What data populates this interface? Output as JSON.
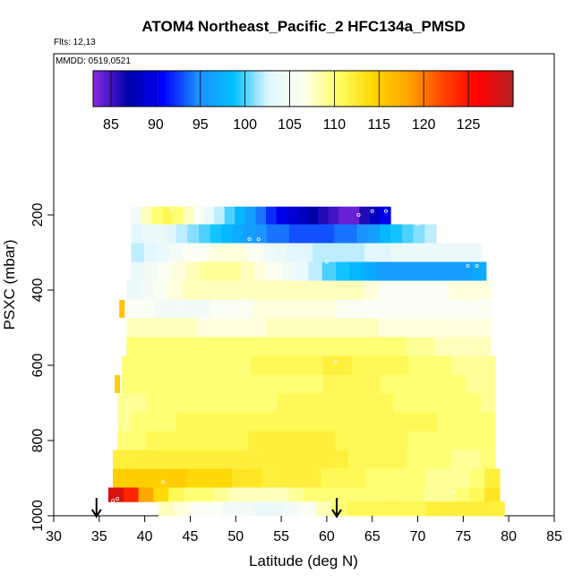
{
  "chart_data": {
    "type": "heatmap",
    "title": "ATOM4 Northeast_Pacific_2 HFC134a_PMSD",
    "flights_label": "Flts: 12,13",
    "dates_label": "MMDD: 0519,0521",
    "xlabel": "Latitude (deg N)",
    "ylabel": "PSXC (mbar)",
    "xlim": [
      30,
      85
    ],
    "ylim": [
      1000,
      0
    ],
    "x_ticks": [
      "30",
      "35",
      "40",
      "45",
      "50",
      "55",
      "60",
      "65",
      "70",
      "75",
      "80",
      "85"
    ],
    "y_ticks": [
      "200",
      "400",
      "600",
      "800",
      "1000"
    ],
    "colorbar": {
      "ticks": [
        "85",
        "90",
        "95",
        "100",
        "105",
        "110",
        "115",
        "120",
        "125"
      ],
      "range": [
        83,
        130
      ],
      "colors": [
        "#8a2be2",
        "#0000a8",
        "#0000ff",
        "#1e90ff",
        "#00bfff",
        "#dff5ff",
        "#fffff0",
        "#ffff66",
        "#ffd700",
        "#ffa500",
        "#ff4500",
        "#ff0000",
        "#b22222"
      ]
    },
    "flight_arrow_latitudes": [
      34.7,
      61.1
    ],
    "rows": [
      {
        "p": 200,
        "lat_start": 38.5,
        "lat_end": 67,
        "values": [
          105,
          108,
          110,
          111,
          110,
          108,
          106,
          104,
          102,
          100,
          98,
          96,
          94,
          92,
          90,
          89,
          88,
          87,
          86,
          85,
          84,
          84,
          86,
          88,
          90
        ]
      },
      {
        "p": 250,
        "lat_start": 38.5,
        "lat_end": 72,
        "values": [
          103,
          104,
          104,
          103,
          102,
          101,
          100,
          99,
          98,
          97,
          96,
          95,
          94,
          94,
          93,
          93,
          93,
          93,
          94,
          94,
          95,
          96,
          98,
          99,
          100,
          101,
          102
        ]
      },
      {
        "p": 300,
        "lat_start": 38.5,
        "lat_end": 77,
        "values": [
          102,
          103,
          104,
          105,
          106,
          106,
          107,
          107,
          107,
          106,
          105,
          104,
          103,
          103,
          102,
          102,
          102,
          102,
          103,
          103,
          104,
          104,
          104,
          104,
          104,
          104,
          104
        ]
      },
      {
        "p": 350,
        "lat_start": 38.5,
        "lat_end": 77.5,
        "values": [
          104,
          105,
          106,
          107,
          108,
          109,
          109,
          109,
          108,
          107,
          106,
          105,
          104,
          102,
          100,
          99,
          98,
          97,
          96,
          96,
          96,
          96,
          96,
          96,
          96,
          97
        ]
      },
      {
        "p": 400,
        "lat_start": 38,
        "lat_end": 78,
        "values": [
          104,
          105,
          106,
          107,
          108,
          108,
          108,
          108,
          108,
          108,
          108,
          108,
          108,
          108,
          108,
          108,
          108,
          107,
          106,
          106,
          106,
          106,
          106,
          107,
          107,
          107
        ]
      },
      {
        "p": 450,
        "lat_start": 38,
        "lat_end": 78,
        "values": [
          106,
          106,
          105,
          105,
          105,
          105,
          106,
          106,
          106,
          107,
          107,
          107,
          107,
          107,
          107,
          106,
          106,
          106,
          106,
          106,
          106,
          106,
          106,
          106,
          106,
          106
        ]
      },
      {
        "p": 500,
        "lat_start": 38,
        "lat_end": 78,
        "values": [
          108,
          108,
          108,
          108,
          108,
          107,
          107,
          107,
          107,
          107,
          108,
          108,
          108,
          108,
          108,
          108,
          108,
          108,
          107,
          107,
          107,
          107,
          107,
          107,
          107,
          107
        ]
      },
      {
        "p": 550,
        "lat_start": 38,
        "lat_end": 78,
        "values": [
          110,
          110,
          110,
          110,
          110,
          110,
          110,
          110,
          110,
          110,
          110,
          110,
          110,
          110,
          110,
          110,
          110,
          110,
          110,
          110,
          109,
          109,
          108,
          108,
          108,
          108
        ]
      },
      {
        "p": 600,
        "lat_start": 37.5,
        "lat_end": 78.5,
        "values": [
          110,
          110,
          110,
          110,
          110,
          110,
          110,
          110,
          110,
          111,
          111,
          111,
          111,
          111,
          112,
          112,
          111,
          111,
          111,
          111,
          110,
          110,
          110,
          109,
          109,
          109
        ]
      },
      {
        "p": 650,
        "lat_start": 37.5,
        "lat_end": 78.5,
        "values": [
          110,
          110,
          110,
          110,
          110,
          110,
          110,
          110,
          110,
          110,
          110,
          110,
          110,
          110,
          111,
          111,
          111,
          111,
          110,
          110,
          110,
          110,
          110,
          110,
          109,
          109
        ]
      },
      {
        "p": 700,
        "lat_start": 37,
        "lat_end": 78.5,
        "values": [
          109,
          109,
          110,
          110,
          110,
          110,
          110,
          110,
          110,
          110,
          110,
          111,
          111,
          111,
          111,
          111,
          111,
          111,
          111,
          110,
          110,
          110,
          110,
          110,
          110,
          109
        ]
      },
      {
        "p": 750,
        "lat_start": 37,
        "lat_end": 78.5,
        "values": [
          109,
          110,
          110,
          110,
          111,
          111,
          111,
          111,
          111,
          111,
          111,
          111,
          111,
          111,
          111,
          111,
          111,
          111,
          111,
          111,
          111,
          111,
          110,
          110,
          110,
          110
        ]
      },
      {
        "p": 800,
        "lat_start": 37,
        "lat_end": 78.5,
        "values": [
          110,
          110,
          111,
          111,
          111,
          111,
          111,
          111,
          111,
          112,
          112,
          112,
          112,
          112,
          112,
          111,
          111,
          111,
          111,
          111,
          110,
          110,
          110,
          110,
          110,
          110
        ]
      },
      {
        "p": 850,
        "lat_start": 36.5,
        "lat_end": 78.5,
        "values": [
          112,
          112,
          112,
          112,
          112,
          112,
          112,
          112,
          112,
          112,
          112,
          112,
          112,
          112,
          112,
          112,
          111,
          111,
          111,
          111,
          110,
          110,
          110,
          109,
          109,
          110
        ]
      },
      {
        "p": 900,
        "lat_start": 36.5,
        "lat_end": 79,
        "values": [
          115,
          115,
          115,
          115,
          115,
          114,
          114,
          114,
          113,
          113,
          112,
          112,
          112,
          112,
          111,
          111,
          111,
          110,
          110,
          110,
          110,
          109,
          109,
          109,
          110,
          112
        ]
      },
      {
        "p": 950,
        "lat_start": 36,
        "lat_end": 79,
        "values": [
          128,
          124,
          118,
          114,
          111,
          110,
          110,
          109,
          108,
          108,
          108,
          108,
          109,
          110,
          110,
          110,
          110,
          110,
          110,
          110,
          110,
          109,
          109,
          110,
          111,
          113
        ]
      },
      {
        "p": 975,
        "lat_start": 41.5,
        "lat_end": 79.5,
        "values": [
          108,
          107,
          106,
          106,
          105,
          105,
          104,
          104,
          105,
          106,
          108,
          110,
          111,
          111,
          111,
          111,
          111,
          112,
          112,
          112,
          112,
          112
        ]
      }
    ],
    "edge_marks": [
      {
        "lat": 37.0,
        "p": 650,
        "value": 115
      },
      {
        "lat": 37.5,
        "p": 450,
        "value": 116
      }
    ],
    "sample_points": [
      {
        "lat": 39.0,
        "p": 200
      },
      {
        "lat": 43.0,
        "p": 185
      },
      {
        "lat": 63.5,
        "p": 200
      },
      {
        "lat": 65.0,
        "p": 190
      },
      {
        "lat": 66.5,
        "p": 190
      },
      {
        "lat": 68.0,
        "p": 215
      },
      {
        "lat": 70.0,
        "p": 225
      },
      {
        "lat": 51.5,
        "p": 265
      },
      {
        "lat": 52.5,
        "p": 265
      },
      {
        "lat": 47.5,
        "p": 300
      },
      {
        "lat": 60.0,
        "p": 325
      },
      {
        "lat": 75.5,
        "p": 335
      },
      {
        "lat": 76.5,
        "p": 335
      },
      {
        "lat": 44.0,
        "p": 435
      },
      {
        "lat": 77.5,
        "p": 440
      },
      {
        "lat": 75.0,
        "p": 485
      },
      {
        "lat": 61.0,
        "p": 590
      },
      {
        "lat": 42.0,
        "p": 910
      },
      {
        "lat": 74.0,
        "p": 935
      },
      {
        "lat": 37.0,
        "p": 955
      },
      {
        "lat": 36.5,
        "p": 960
      },
      {
        "lat": 50.0,
        "p": 985
      }
    ]
  }
}
